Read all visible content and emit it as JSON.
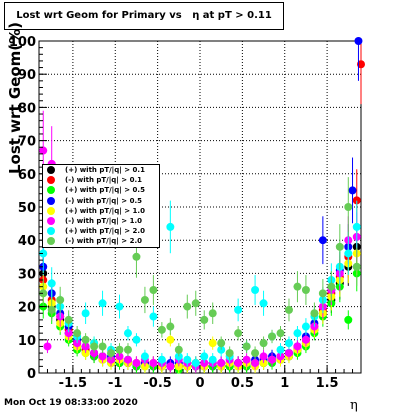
{
  "title": "Lost wrt Geom for Primary vs   η at pT > 0.11",
  "footer_date": "Mon Oct 19 08:33:00 2020",
  "chart_data": {
    "type": "scatter",
    "title": "Lost wrt Geom for Primary vs   η at pT > 0.11",
    "xlabel": "η",
    "ylabel": "Lost wrt Geom(%)",
    "xlim": [
      -1.9,
      1.9
    ],
    "ylim": [
      0,
      100
    ],
    "grid": true,
    "legend_placement": "center-left",
    "x_ticks": [
      "-1.5",
      "-1",
      "-0.5",
      "0",
      "0.5",
      "1",
      "1.5"
    ],
    "y_ticks": [
      "0",
      "10",
      "20",
      "30",
      "40",
      "50",
      "60",
      "70",
      "80",
      "90",
      "100"
    ],
    "series": [
      {
        "name": "(+) with pT/|q| > 0.1",
        "color": "#000000",
        "points": [
          [
            -1.85,
            30
          ],
          [
            -1.75,
            20
          ],
          [
            -1.65,
            16
          ],
          [
            -1.55,
            12
          ],
          [
            -1.45,
            8
          ],
          [
            -1.35,
            7
          ],
          [
            -1.25,
            5
          ],
          [
            -1.15,
            4
          ],
          [
            -1.05,
            4
          ],
          [
            -0.95,
            3
          ],
          [
            -0.85,
            3
          ],
          [
            -0.75,
            2
          ],
          [
            -0.65,
            3
          ],
          [
            -0.55,
            2
          ],
          [
            -0.45,
            2
          ],
          [
            -0.35,
            2
          ],
          [
            -0.25,
            2
          ],
          [
            -0.15,
            2
          ],
          [
            -0.05,
            2
          ],
          [
            0.05,
            2
          ],
          [
            0.15,
            2
          ],
          [
            0.25,
            2
          ],
          [
            0.35,
            2
          ],
          [
            0.45,
            3
          ],
          [
            0.55,
            2
          ],
          [
            0.65,
            3
          ],
          [
            0.75,
            3
          ],
          [
            0.85,
            4
          ],
          [
            0.95,
            4
          ],
          [
            1.05,
            5
          ],
          [
            1.15,
            7
          ],
          [
            1.25,
            9
          ],
          [
            1.35,
            13
          ],
          [
            1.45,
            18
          ],
          [
            1.55,
            22
          ],
          [
            1.65,
            27
          ],
          [
            1.75,
            32
          ],
          [
            1.85,
            38
          ]
        ]
      },
      {
        "name": "(-) with pT/|q| > 0.1",
        "color": "#ff0000",
        "points": [
          [
            -1.85,
            28
          ],
          [
            -1.75,
            22
          ],
          [
            -1.65,
            17
          ],
          [
            -1.55,
            13
          ],
          [
            -1.45,
            9
          ],
          [
            -1.35,
            7
          ],
          [
            -1.25,
            6
          ],
          [
            -1.15,
            5
          ],
          [
            -1.05,
            4
          ],
          [
            -0.95,
            4
          ],
          [
            -0.85,
            3
          ],
          [
            -0.75,
            3
          ],
          [
            -0.65,
            3
          ],
          [
            -0.55,
            3
          ],
          [
            -0.45,
            2
          ],
          [
            -0.35,
            2
          ],
          [
            -0.25,
            2
          ],
          [
            -0.15,
            2
          ],
          [
            -0.05,
            3
          ],
          [
            0.05,
            2
          ],
          [
            0.15,
            3
          ],
          [
            0.25,
            2
          ],
          [
            0.35,
            3
          ],
          [
            0.45,
            3
          ],
          [
            0.55,
            3
          ],
          [
            0.65,
            3
          ],
          [
            0.75,
            4
          ],
          [
            0.85,
            4
          ],
          [
            0.95,
            5
          ],
          [
            1.05,
            6
          ],
          [
            1.15,
            7
          ],
          [
            1.25,
            10
          ],
          [
            1.35,
            14
          ],
          [
            1.45,
            19
          ],
          [
            1.55,
            24
          ],
          [
            1.65,
            29
          ],
          [
            1.75,
            35
          ],
          [
            1.85,
            52
          ],
          [
            1.9,
            93
          ]
        ]
      },
      {
        "name": "(+) with pT/|q| > 0.5",
        "color": "#00ff00",
        "points": [
          [
            -1.85,
            20
          ],
          [
            -1.75,
            18
          ],
          [
            -1.65,
            14
          ],
          [
            -1.55,
            10
          ],
          [
            -1.45,
            7
          ],
          [
            -1.35,
            6
          ],
          [
            -1.25,
            5
          ],
          [
            -1.15,
            4
          ],
          [
            -1.05,
            3
          ],
          [
            -0.95,
            3
          ],
          [
            -0.85,
            3
          ],
          [
            -0.75,
            2
          ],
          [
            -0.65,
            2
          ],
          [
            -0.55,
            2
          ],
          [
            -0.45,
            2
          ],
          [
            -0.35,
            2
          ],
          [
            -0.25,
            1
          ],
          [
            -0.15,
            2
          ],
          [
            -0.05,
            2
          ],
          [
            0.05,
            2
          ],
          [
            0.15,
            2
          ],
          [
            0.25,
            2
          ],
          [
            0.35,
            2
          ],
          [
            0.45,
            2
          ],
          [
            0.55,
            2
          ],
          [
            0.65,
            3
          ],
          [
            0.75,
            3
          ],
          [
            0.85,
            3
          ],
          [
            0.95,
            4
          ],
          [
            1.05,
            5
          ],
          [
            1.15,
            6
          ],
          [
            1.25,
            8
          ],
          [
            1.35,
            12
          ],
          [
            1.45,
            17
          ],
          [
            1.55,
            21
          ],
          [
            1.65,
            26
          ],
          [
            1.75,
            16
          ],
          [
            1.85,
            30
          ]
        ]
      },
      {
        "name": "(-) with pT/|q| > 0.5",
        "color": "#0000ff",
        "points": [
          [
            -1.85,
            32
          ],
          [
            -1.75,
            24
          ],
          [
            -1.65,
            18
          ],
          [
            -1.55,
            14
          ],
          [
            -1.45,
            10
          ],
          [
            -1.35,
            8
          ],
          [
            -1.25,
            6
          ],
          [
            -1.15,
            5
          ],
          [
            -1.05,
            5
          ],
          [
            -0.95,
            4
          ],
          [
            -0.85,
            4
          ],
          [
            -0.75,
            3
          ],
          [
            -0.65,
            3
          ],
          [
            -0.55,
            3
          ],
          [
            -0.45,
            3
          ],
          [
            -0.35,
            3
          ],
          [
            -0.25,
            3
          ],
          [
            -0.15,
            3
          ],
          [
            -0.05,
            3
          ],
          [
            0.05,
            3
          ],
          [
            0.15,
            3
          ],
          [
            0.25,
            3
          ],
          [
            0.35,
            3
          ],
          [
            0.45,
            3
          ],
          [
            0.55,
            3
          ],
          [
            0.65,
            4
          ],
          [
            0.75,
            4
          ],
          [
            0.85,
            5
          ],
          [
            0.95,
            5
          ],
          [
            1.05,
            6
          ],
          [
            1.15,
            8
          ],
          [
            1.25,
            11
          ],
          [
            1.35,
            15
          ],
          [
            1.45,
            40
          ],
          [
            1.55,
            25
          ],
          [
            1.65,
            31
          ],
          [
            1.75,
            38
          ],
          [
            1.8,
            55
          ],
          [
            1.87,
            100
          ]
        ]
      },
      {
        "name": "(+) with pT/|q| > 1.0",
        "color": "#ffff00",
        "points": [
          [
            -1.85,
            26
          ],
          [
            -1.75,
            21
          ],
          [
            -1.65,
            15
          ],
          [
            -1.55,
            11
          ],
          [
            -1.45,
            8
          ],
          [
            -1.35,
            6
          ],
          [
            -1.25,
            9
          ],
          [
            -1.15,
            4
          ],
          [
            -1.05,
            3
          ],
          [
            -0.95,
            4
          ],
          [
            -0.85,
            3
          ],
          [
            -0.75,
            3
          ],
          [
            -0.65,
            2
          ],
          [
            -0.55,
            3
          ],
          [
            -0.45,
            2
          ],
          [
            -0.35,
            10
          ],
          [
            -0.25,
            2
          ],
          [
            -0.15,
            2
          ],
          [
            -0.05,
            3
          ],
          [
            0.05,
            2
          ],
          [
            0.15,
            9
          ],
          [
            0.25,
            2
          ],
          [
            0.35,
            3
          ],
          [
            0.45,
            2
          ],
          [
            0.55,
            3
          ],
          [
            0.65,
            2
          ],
          [
            0.75,
            3
          ],
          [
            0.85,
            4
          ],
          [
            0.95,
            4
          ],
          [
            1.05,
            5
          ],
          [
            1.15,
            7
          ],
          [
            1.25,
            9
          ],
          [
            1.35,
            13
          ],
          [
            1.45,
            18
          ],
          [
            1.55,
            23
          ],
          [
            1.65,
            28
          ],
          [
            1.75,
            33
          ],
          [
            1.85,
            36
          ]
        ]
      },
      {
        "name": "(-) with pT/|q| > 1.0",
        "color": "#ff00ff",
        "points": [
          [
            -1.85,
            67
          ],
          [
            -1.8,
            8
          ],
          [
            -1.75,
            63
          ],
          [
            -1.65,
            17
          ],
          [
            -1.55,
            12
          ],
          [
            -1.45,
            9
          ],
          [
            -1.35,
            8
          ],
          [
            -1.25,
            6
          ],
          [
            -1.15,
            5
          ],
          [
            -1.05,
            4
          ],
          [
            -0.95,
            5
          ],
          [
            -0.85,
            4
          ],
          [
            -0.75,
            3
          ],
          [
            -0.65,
            4
          ],
          [
            -0.55,
            3
          ],
          [
            -0.45,
            3
          ],
          [
            -0.35,
            2
          ],
          [
            -0.25,
            4
          ],
          [
            -0.15,
            3
          ],
          [
            -0.05,
            2
          ],
          [
            0.05,
            3
          ],
          [
            0.15,
            3
          ],
          [
            0.25,
            3
          ],
          [
            0.35,
            4
          ],
          [
            0.45,
            3
          ],
          [
            0.55,
            4
          ],
          [
            0.65,
            3
          ],
          [
            0.75,
            5
          ],
          [
            0.85,
            4
          ],
          [
            0.95,
            5
          ],
          [
            1.05,
            6
          ],
          [
            1.15,
            8
          ],
          [
            1.25,
            10
          ],
          [
            1.35,
            14
          ],
          [
            1.45,
            20
          ],
          [
            1.55,
            25
          ],
          [
            1.65,
            30
          ],
          [
            1.75,
            40
          ],
          [
            1.85,
            41
          ]
        ]
      },
      {
        "name": "(+) with pT/|q| > 2.0",
        "color": "#00ffff",
        "points": [
          [
            -1.85,
            36
          ],
          [
            -1.75,
            27
          ],
          [
            -1.65,
            20
          ],
          [
            -1.55,
            15
          ],
          [
            -1.45,
            11
          ],
          [
            -1.35,
            18
          ],
          [
            -1.25,
            9
          ],
          [
            -1.15,
            21
          ],
          [
            -1.05,
            7
          ],
          [
            -0.95,
            20
          ],
          [
            -0.85,
            12
          ],
          [
            -0.75,
            10
          ],
          [
            -0.65,
            5
          ],
          [
            -0.55,
            17
          ],
          [
            -0.45,
            4
          ],
          [
            -0.35,
            44
          ],
          [
            -0.25,
            5
          ],
          [
            -0.15,
            4
          ],
          [
            -0.05,
            3
          ],
          [
            0.05,
            5
          ],
          [
            0.15,
            4
          ],
          [
            0.25,
            7
          ],
          [
            0.35,
            5
          ],
          [
            0.45,
            19
          ],
          [
            0.55,
            8
          ],
          [
            0.65,
            25
          ],
          [
            0.75,
            21
          ],
          [
            0.85,
            11
          ],
          [
            0.95,
            7
          ],
          [
            1.05,
            9
          ],
          [
            1.15,
            12
          ],
          [
            1.25,
            14
          ],
          [
            1.35,
            17
          ],
          [
            1.45,
            22
          ],
          [
            1.55,
            28
          ],
          [
            1.65,
            32
          ],
          [
            1.75,
            36
          ],
          [
            1.85,
            44
          ]
        ]
      },
      {
        "name": "(-) with pT/|q| > 2.0",
        "color": "#66cc55",
        "points": [
          [
            -1.85,
            24
          ],
          [
            -1.75,
            19
          ],
          [
            -1.65,
            22
          ],
          [
            -1.55,
            16
          ],
          [
            -1.45,
            12
          ],
          [
            -1.35,
            10
          ],
          [
            -1.25,
            8
          ],
          [
            -1.15,
            8
          ],
          [
            -1.05,
            6
          ],
          [
            -0.95,
            7
          ],
          [
            -0.85,
            7
          ],
          [
            -0.75,
            35
          ],
          [
            -0.65,
            22
          ],
          [
            -0.55,
            25
          ],
          [
            -0.45,
            13
          ],
          [
            -0.35,
            14
          ],
          [
            -0.25,
            7
          ],
          [
            -0.15,
            20
          ],
          [
            -0.05,
            21
          ],
          [
            0.05,
            16
          ],
          [
            0.15,
            18
          ],
          [
            0.25,
            9
          ],
          [
            0.35,
            6
          ],
          [
            0.45,
            12
          ],
          [
            0.55,
            8
          ],
          [
            0.65,
            6
          ],
          [
            0.75,
            9
          ],
          [
            0.85,
            11
          ],
          [
            0.95,
            12
          ],
          [
            1.05,
            19
          ],
          [
            1.15,
            26
          ],
          [
            1.25,
            25
          ],
          [
            1.35,
            18
          ],
          [
            1.45,
            24
          ],
          [
            1.55,
            26
          ],
          [
            1.65,
            38
          ],
          [
            1.75,
            50
          ],
          [
            1.85,
            32
          ]
        ]
      }
    ]
  }
}
